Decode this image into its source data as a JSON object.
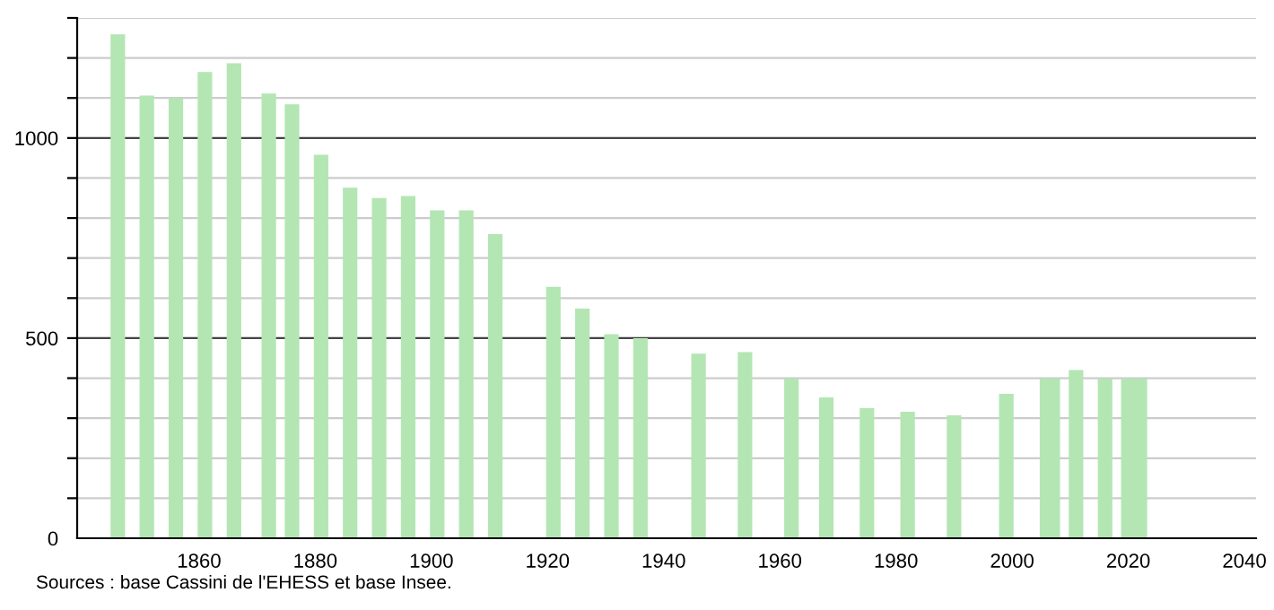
{
  "chart_data": {
    "type": "bar",
    "x": [
      1846,
      1851,
      1856,
      1861,
      1866,
      1872,
      1876,
      1881,
      1886,
      1891,
      1896,
      1901,
      1906,
      1911,
      1921,
      1926,
      1931,
      1936,
      1946,
      1954,
      1962,
      1968,
      1975,
      1982,
      1990,
      1999,
      2006,
      2007,
      2011,
      2016,
      2020,
      2022
    ],
    "values": [
      1259,
      1106,
      1100,
      1165,
      1187,
      1111,
      1084,
      958,
      876,
      850,
      855,
      819,
      819,
      760,
      628,
      574,
      510,
      500,
      461,
      465,
      399,
      352,
      325,
      316,
      307,
      361,
      399,
      399,
      420,
      399,
      399,
      399
    ],
    "color": "#b3e6b3",
    "xlim": [
      1839,
      2042
    ],
    "xticks": [
      1860,
      1880,
      1900,
      1920,
      1940,
      1960,
      1980,
      2000,
      2020,
      2040
    ],
    "ylim": [
      0,
      1300
    ],
    "yticks": [
      0,
      {
        "value": 100,
        "label": null
      },
      {
        "value": 200,
        "label": null
      },
      {
        "value": 300,
        "label": null
      },
      {
        "value": 400,
        "label": null
      },
      500,
      {
        "value": 600,
        "label": null
      },
      {
        "value": 700,
        "label": null
      },
      {
        "value": 800,
        "label": null
      },
      {
        "value": 900,
        "label": null
      },
      1000,
      {
        "value": 1100,
        "label": null
      },
      {
        "value": 1200,
        "label": null
      },
      {
        "value": 1300,
        "label": null
      }
    ],
    "grid": "y",
    "annotations": [
      "Sources : base Cassini de l'EHESS et base Insee."
    ]
  }
}
